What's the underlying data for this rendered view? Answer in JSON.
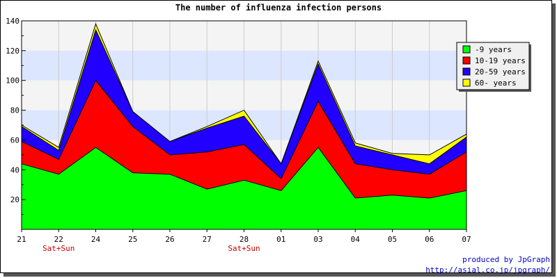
{
  "chart_data": {
    "type": "area",
    "stacked": true,
    "title": "The number of influenza infection persons",
    "categories": [
      "21",
      "22",
      "24",
      "25",
      "26",
      "27",
      "28",
      "01",
      "03",
      "04",
      "05",
      "06",
      "07"
    ],
    "weekend_labels": [
      "",
      "Sat+Sun",
      "",
      "",
      "",
      "",
      "Sat+Sun",
      "",
      "",
      "",
      "",
      "",
      ""
    ],
    "ylim": [
      0,
      140
    ],
    "yticks": [
      20,
      40,
      60,
      80,
      100,
      120,
      140
    ],
    "grid": true,
    "band_colors": [
      "#f4f4f4",
      "#dde6ff"
    ],
    "legend_position": "top-right",
    "series": [
      {
        "name": "-9 years",
        "color": "#00ff00",
        "values": [
          44,
          37,
          55,
          38,
          37,
          27,
          33,
          26,
          55,
          21,
          23,
          21,
          26
        ]
      },
      {
        "name": "10-19 years",
        "color": "#ff0000",
        "values": [
          15,
          10,
          45,
          31,
          13,
          25,
          24,
          8,
          31,
          23,
          17,
          16,
          26
        ]
      },
      {
        "name": "20-59 years",
        "color": "#2200ff",
        "values": [
          10,
          6,
          34,
          10,
          9,
          16,
          19,
          10,
          25,
          12,
          10,
          7,
          10
        ]
      },
      {
        "name": "60- years",
        "color": "#ffff00",
        "values": [
          1,
          2,
          4,
          0,
          0,
          1,
          4,
          0,
          2,
          2,
          1,
          6,
          2
        ]
      }
    ]
  },
  "credit": {
    "line1": "produced by JpGraph",
    "line2": "http://asial.co.jp/jpgraph/"
  }
}
